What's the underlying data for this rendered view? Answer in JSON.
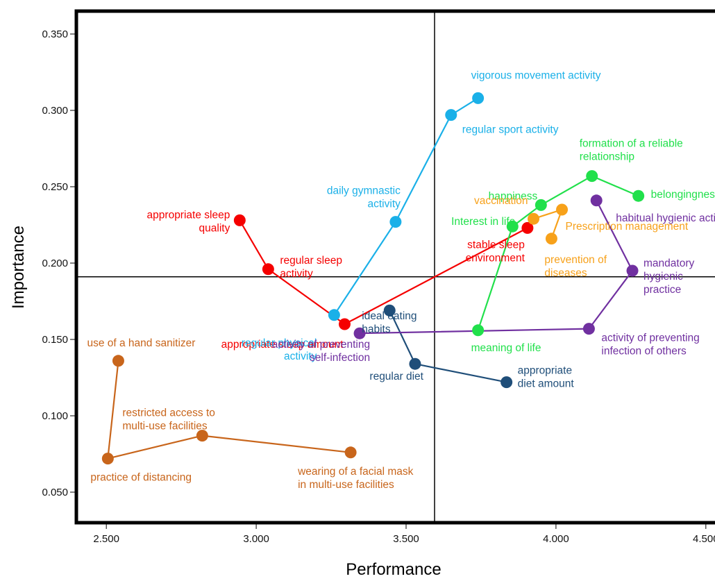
{
  "chart_data": {
    "type": "scatter",
    "xlabel": "Performance",
    "ylabel": "Importance",
    "xlim": [
      2.4,
      4.6
    ],
    "ylim": [
      0.03,
      0.365
    ],
    "xticks": [
      "2.500",
      "3.000",
      "3.500",
      "4.000",
      "4.500"
    ],
    "yticks": [
      "0.050",
      "0.100",
      "0.150",
      "0.200",
      "0.250",
      "0.300",
      "0.350"
    ],
    "reference_lines": {
      "x": 3.595,
      "y": 0.191
    },
    "grid": false,
    "series": [
      {
        "color": "#f50000",
        "points": [
          {
            "x": 2.945,
            "y": 0.228,
            "label": "appropriate sleep\nquality"
          },
          {
            "x": 3.04,
            "y": 0.196,
            "label": "regular sleep\nactivity"
          },
          {
            "x": 3.295,
            "y": 0.16,
            "label": "appropriate sleep amount"
          },
          {
            "x": 3.905,
            "y": 0.223,
            "label": "stable sleep\nenvironment"
          }
        ]
      },
      {
        "color": "#1ab0e8",
        "points": [
          {
            "x": 3.26,
            "y": 0.166,
            "label": "regular physical\nactivity"
          },
          {
            "x": 3.465,
            "y": 0.227,
            "label": "daily gymnastic\nactivity"
          },
          {
            "x": 3.65,
            "y": 0.297,
            "label": "regular sport activity"
          },
          {
            "x": 3.74,
            "y": 0.308,
            "label": "vigorous movement activity"
          }
        ]
      },
      {
        "color": "#1f4e79",
        "points": [
          {
            "x": 3.445,
            "y": 0.169,
            "label": "ideal eating\nhabits"
          },
          {
            "x": 3.53,
            "y": 0.134,
            "label": "regular diet"
          },
          {
            "x": 3.835,
            "y": 0.122,
            "label": "appropriate\ndiet amount"
          }
        ]
      },
      {
        "color": "#7030a0",
        "points": [
          {
            "x": 3.345,
            "y": 0.154,
            "label": "activity of preventing\nself-infection"
          },
          {
            "x": 4.11,
            "y": 0.157,
            "label": "activity of preventing\ninfection of others"
          },
          {
            "x": 4.255,
            "y": 0.195,
            "label": "mandatory\nhygienic\npractice"
          },
          {
            "x": 4.135,
            "y": 0.241,
            "label": "habitual hygienic activity"
          }
        ]
      },
      {
        "color": "#21e04b",
        "points": [
          {
            "x": 3.74,
            "y": 0.156,
            "label": "meaning of life"
          },
          {
            "x": 3.855,
            "y": 0.224,
            "label": "Interest in life"
          },
          {
            "x": 3.95,
            "y": 0.238,
            "label": "happiness"
          },
          {
            "x": 4.12,
            "y": 0.257,
            "label": "formation of a reliable\nrelationship"
          },
          {
            "x": 4.275,
            "y": 0.244,
            "label": "belongingness"
          }
        ]
      },
      {
        "color": "#f7a11a",
        "points": [
          {
            "x": 3.985,
            "y": 0.216,
            "label": "prevention of\ndiseases"
          },
          {
            "x": 4.02,
            "y": 0.235,
            "label": "Prescription management"
          },
          {
            "x": 3.925,
            "y": 0.229,
            "label": "vaccination"
          }
        ]
      },
      {
        "color": "#c8651b",
        "points": [
          {
            "x": 2.54,
            "y": 0.136,
            "label": "use of a hand sanitizer"
          },
          {
            "x": 2.505,
            "y": 0.072,
            "label": "practice of distancing"
          },
          {
            "x": 2.82,
            "y": 0.087,
            "label": "restricted access to\nmulti-use facilities"
          },
          {
            "x": 3.315,
            "y": 0.076,
            "label": "wearing of a facial mask\nin multi-use facilities"
          }
        ]
      }
    ]
  }
}
